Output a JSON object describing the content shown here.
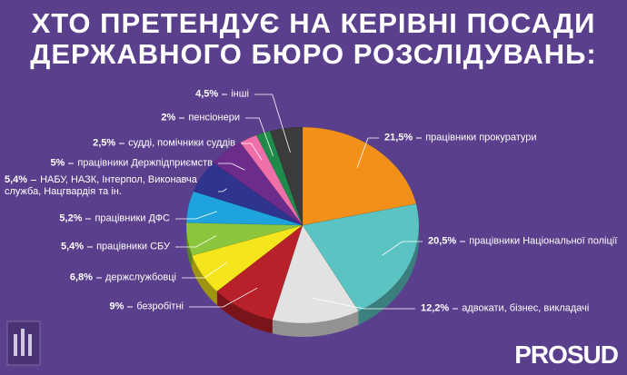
{
  "chart_data": {
    "type": "pie",
    "title_lines": [
      "ХТО ПРЕТЕНДУЄ НА КЕРІВНІ ПОСАДИ",
      "ДЕРЖАВНОГО БЮРО РОЗСЛІДУВАНЬ:"
    ],
    "categories": [
      "працівники прокуратури",
      "працівники Національної поліції",
      "адвокати, бізнес, викладачі",
      "безробітні",
      "держслужбовці",
      "працівники СБУ",
      "працівники ДФС",
      "НАБУ, НАЗК, Інтерпол, Виконавча служба, Нацгвардія та ін.",
      "працівники Держпідприємств",
      "судді, помічники суддів",
      "пенсіонери",
      "інші"
    ],
    "values": [
      21.5,
      20.5,
      12.2,
      9,
      6.8,
      5.4,
      5.2,
      5.4,
      5,
      2.5,
      2,
      4.5
    ],
    "value_labels": [
      "21,5%",
      "20,5%",
      "12,2%",
      "9%",
      "6,8%",
      "5,4%",
      "5,2%",
      "5,4%",
      "5%",
      "2,5%",
      "2%",
      "4,5%"
    ],
    "colors": [
      "#f39019",
      "#5cc3c3",
      "#e2e2e2",
      "#b8202a",
      "#f4e51c",
      "#8cc63f",
      "#1fa3dc",
      "#2f358f",
      "#6b2c8c",
      "#ef6fa8",
      "#1f8a4a",
      "#3b3b3b"
    ],
    "brand": "PROSUD"
  }
}
